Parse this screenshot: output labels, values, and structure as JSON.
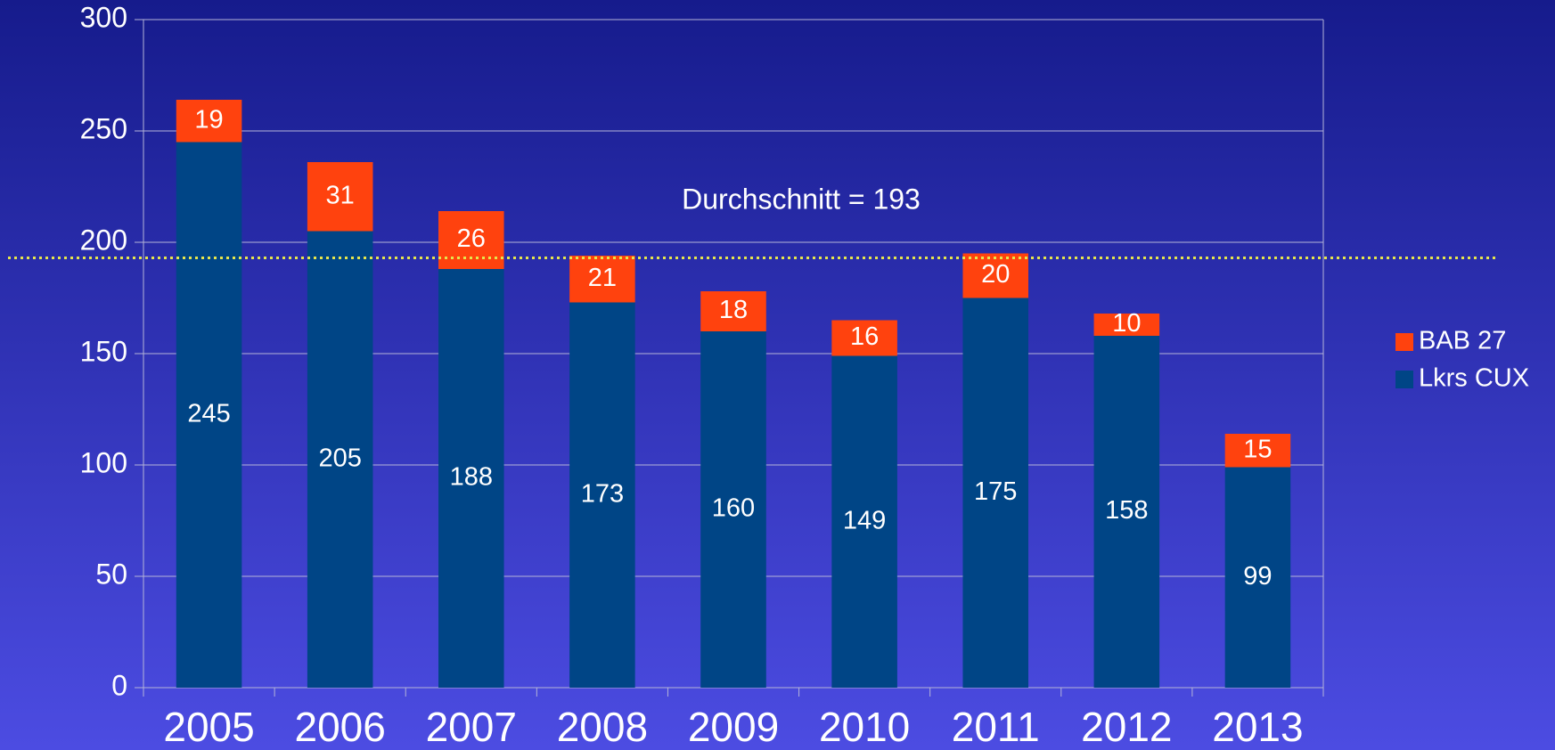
{
  "chart_data": {
    "type": "stacked_bar",
    "categories": [
      "2005",
      "2006",
      "2007",
      "2008",
      "2009",
      "2010",
      "2011",
      "2012",
      "2013"
    ],
    "series": [
      {
        "name": "Lkrs CUX",
        "color": "#004586",
        "values": [
          245,
          205,
          188,
          173,
          160,
          149,
          175,
          158,
          99
        ]
      },
      {
        "name": "BAB 27",
        "color": "#ff420e",
        "values": [
          19,
          31,
          26,
          21,
          18,
          16,
          20,
          10,
          15
        ]
      }
    ],
    "average": 193,
    "annotation": "Durchschnitt = 193",
    "average_color": "#e6e64c",
    "ylim": [
      0,
      300
    ],
    "yticks": [
      0,
      50,
      100,
      150,
      200,
      250,
      300
    ],
    "grid": true,
    "legend": "right"
  }
}
